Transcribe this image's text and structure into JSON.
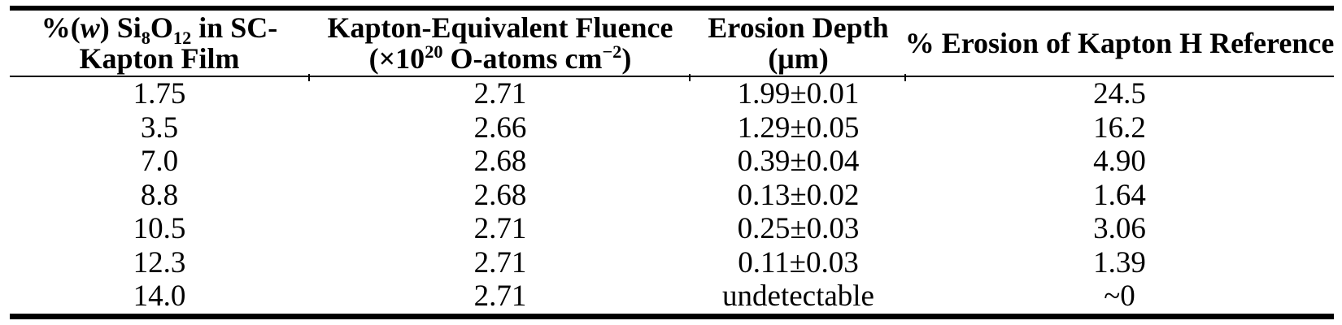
{
  "table": {
    "header": {
      "col1": {
        "line1": {
          "p1": "%(",
          "w": "w",
          "p2": ") Si",
          "sub_a": "8",
          "p3": "O",
          "sub_b": "12",
          "p4": " in SC-"
        },
        "line2": "Kapton Film"
      },
      "col2": {
        "line1": "Kapton-Equivalent Fluence",
        "line2": {
          "p1": "(×10",
          "sup_a": "20",
          "p2": " O-atoms cm",
          "sup_b": "−2",
          "p3": ")"
        }
      },
      "col3": {
        "line1": "Erosion Depth",
        "line2": "(μm)"
      },
      "col4": {
        "line1": "% Erosion of Kapton H Reference"
      }
    },
    "rows": [
      {
        "c1": "1.75",
        "c2": "2.71",
        "c3": "1.99±0.01",
        "c4": "24.5"
      },
      {
        "c1": "3.5",
        "c2": "2.66",
        "c3": "1.29±0.05",
        "c4": "16.2"
      },
      {
        "c1": "7.0",
        "c2": "2.68",
        "c3": "0.39±0.04",
        "c4": "4.90"
      },
      {
        "c1": "8.8",
        "c2": "2.68",
        "c3": "0.13±0.02",
        "c4": "1.64"
      },
      {
        "c1": "10.5",
        "c2": "2.71",
        "c3": "0.25±0.03",
        "c4": "3.06"
      },
      {
        "c1": "12.3",
        "c2": "2.71",
        "c3": "0.11±0.03",
        "c4": "1.39"
      },
      {
        "c1": "14.0",
        "c2": "2.71",
        "c3": "undetectable",
        "c4": "~0"
      }
    ]
  },
  "colors": {
    "text": "#000000",
    "rule": "#000000",
    "background": "#ffffff"
  }
}
